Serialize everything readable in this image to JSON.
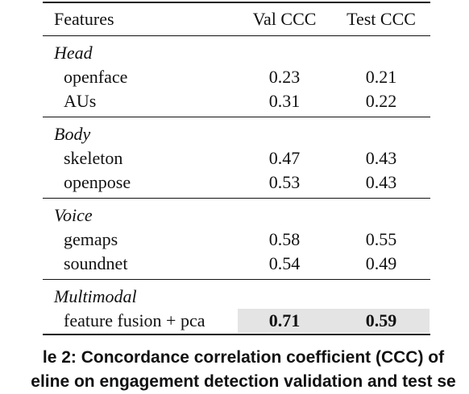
{
  "table": {
    "header": {
      "features": "Features",
      "val": "Val CCC",
      "test": "Test CCC"
    },
    "groups": [
      {
        "label": "Head",
        "rows": [
          {
            "feature": "openface",
            "val": "0.23",
            "test": "0.21"
          },
          {
            "feature": "AUs",
            "val": "0.31",
            "test": "0.22"
          }
        ]
      },
      {
        "label": "Body",
        "rows": [
          {
            "feature": "skeleton",
            "val": "0.47",
            "test": "0.43"
          },
          {
            "feature": "openpose",
            "val": "0.53",
            "test": "0.43"
          }
        ]
      },
      {
        "label": "Voice",
        "rows": [
          {
            "feature": "gemaps",
            "val": "0.58",
            "test": "0.55"
          },
          {
            "feature": "soundnet",
            "val": "0.54",
            "test": "0.49"
          }
        ]
      },
      {
        "label": "Multimodal",
        "rows": [
          {
            "feature": "feature fusion + pca",
            "val": "0.71",
            "test": "0.59"
          }
        ]
      }
    ]
  },
  "caption": {
    "line1": "le 2: Concordance correlation coefficient (CCC) of",
    "line2": "eline on engagement detection validation and test se"
  },
  "colors": {
    "highlight": "#e4e4e4",
    "text": "#111111"
  }
}
